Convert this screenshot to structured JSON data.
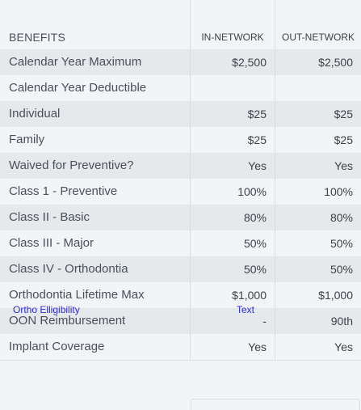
{
  "header": {
    "benefits": "BENEFITS",
    "in_network": "IN-NETWORK",
    "out_network": "OUT-NETWORK"
  },
  "rows": [
    {
      "label": "Calendar Year Maximum",
      "in": "$2,500",
      "out": "$2,500"
    },
    {
      "label": "Calendar Year Deductible",
      "in": "",
      "out": ""
    },
    {
      "label": "Individual",
      "in": "$25",
      "out": "$25"
    },
    {
      "label": "Family",
      "in": "$25",
      "out": "$25"
    },
    {
      "label": "Waived for Preventive?",
      "in": "Yes",
      "out": "Yes"
    },
    {
      "label": "Class 1 - Preventive",
      "in": "100%",
      "out": "100%"
    },
    {
      "label": "Class II - Basic",
      "in": "80%",
      "out": "80%"
    },
    {
      "label": "Class III - Major",
      "in": "50%",
      "out": "50%"
    },
    {
      "label": "Class IV - Orthodontia",
      "in": "50%",
      "out": "50%"
    },
    {
      "label": "Orthodontia Lifetime Max",
      "in": "$1,000",
      "out": "$1,000"
    },
    {
      "label": "OON Reimbursement",
      "in": "-",
      "out": "90th"
    },
    {
      "label": "Implant Coverage",
      "in": "Yes",
      "out": "Yes"
    }
  ],
  "links": {
    "ortho_eligibility": "Ortho Elligibility",
    "text": "Text"
  }
}
